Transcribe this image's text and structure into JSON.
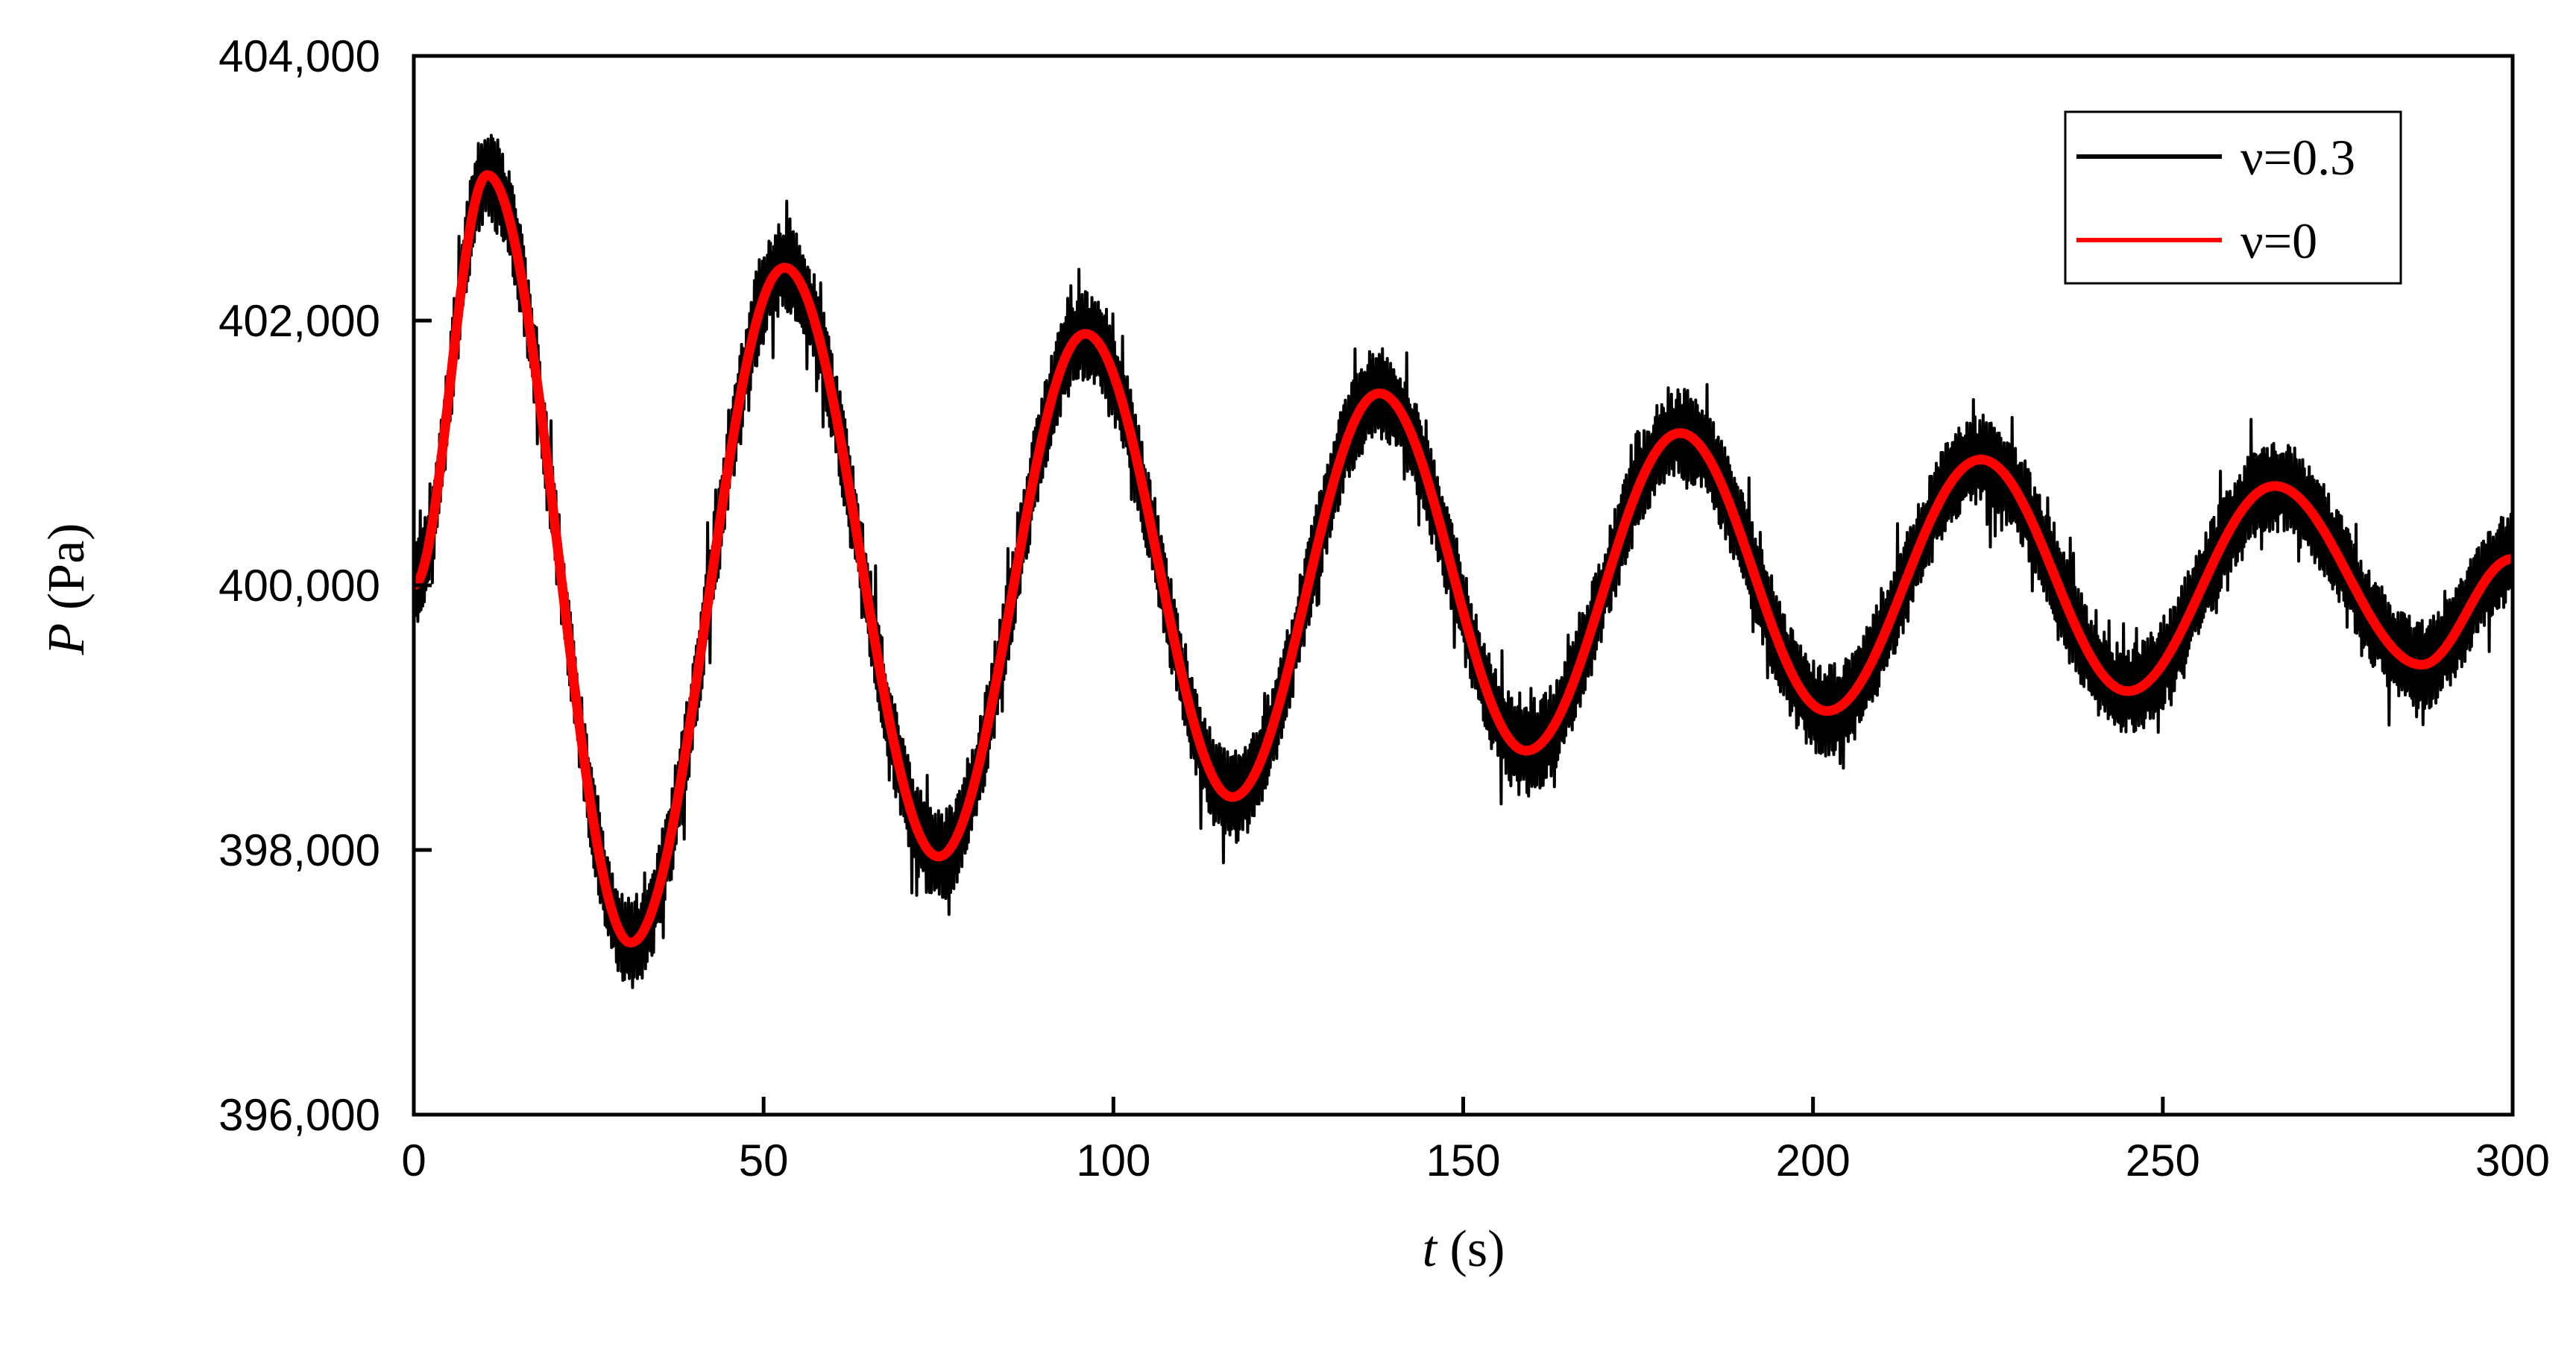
{
  "chart_data": {
    "type": "line",
    "title": "",
    "xlabel": {
      "var": "t",
      "unit": " (s)"
    },
    "ylabel": {
      "var": "P",
      "unit": " (Pa)"
    },
    "xlim": [
      0,
      300
    ],
    "ylim": [
      396000,
      404000
    ],
    "x_ticks": [
      0,
      50,
      100,
      150,
      200,
      250,
      300
    ],
    "x_tick_labels": [
      "0",
      "50",
      "100",
      "150",
      "200",
      "250",
      "300"
    ],
    "y_ticks": [
      396000,
      398000,
      400000,
      402000,
      404000
    ],
    "y_tick_labels": [
      "396,000",
      "398,000",
      "400,000",
      "402,000",
      "404,000"
    ],
    "grid": false,
    "legend_position": "top-right",
    "series": [
      {
        "name": "ν=0.3",
        "color": "#000000",
        "noisy": true,
        "x": [
          0,
          10.5,
          31,
          53,
          75,
          96,
          117,
          138,
          159,
          181,
          202,
          224,
          245,
          266,
          287,
          300
        ],
        "y": [
          400000,
          403100,
          397300,
          402400,
          397950,
          401900,
          398400,
          401450,
          398750,
          401150,
          399050,
          400950,
          399200,
          400750,
          399400,
          400200
        ]
      },
      {
        "name": "ν=0",
        "color": "#ff0000",
        "noisy": false,
        "x": [
          0,
          10.5,
          31,
          53,
          75,
          96,
          117,
          138,
          159,
          181,
          202,
          224,
          245,
          266,
          287,
          300
        ],
        "y": [
          400000,
          403100,
          397300,
          402400,
          397950,
          401900,
          398400,
          401450,
          398750,
          401150,
          399050,
          400950,
          399200,
          400750,
          399400,
          400200
        ]
      }
    ]
  }
}
